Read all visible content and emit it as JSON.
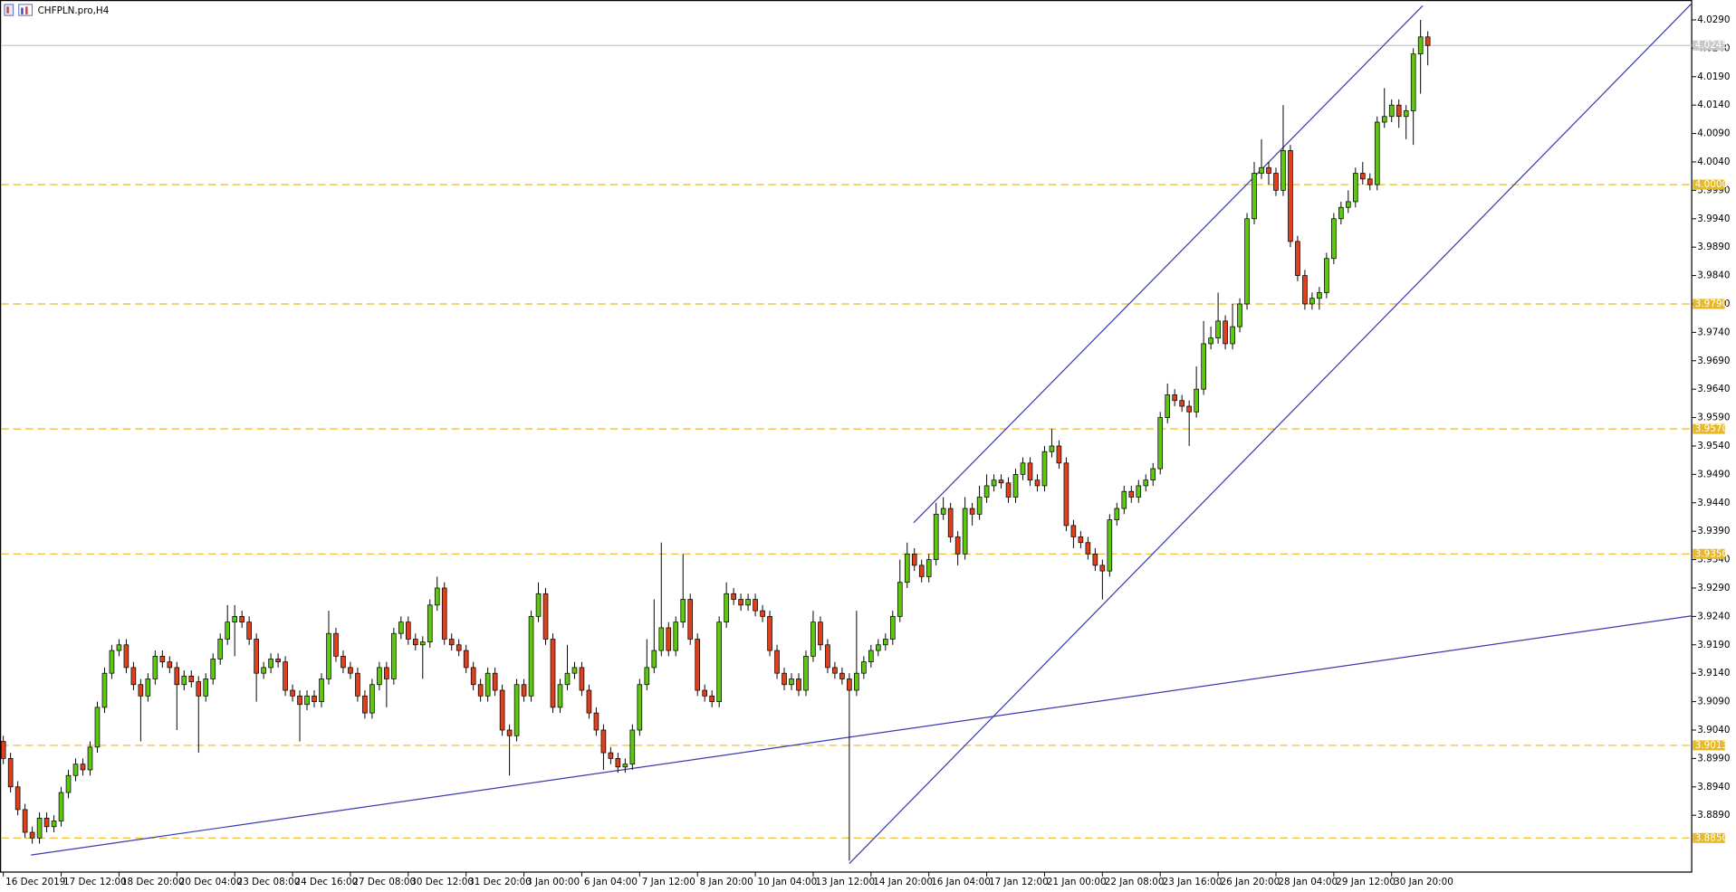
{
  "chart_data": {
    "type": "candlestick",
    "title": "CHFPLN.pro,H4",
    "up_color": "#5ec80f",
    "down_color": "#e0401c",
    "level_color": "#e8b923",
    "trendline_color": "#3a3ab0",
    "xlim": [
      -0.46,
      233.5
    ],
    "ylim": [
      3.879,
      4.0325
    ],
    "xticks": [
      {
        "value": 0,
        "label": "16 Dec 2019"
      },
      {
        "value": 8,
        "label": "17 Dec 12:00"
      },
      {
        "value": 16,
        "label": "18 Dec 20:00"
      },
      {
        "value": 24,
        "label": "20 Dec 04:00"
      },
      {
        "value": 32,
        "label": "23 Dec 08:00"
      },
      {
        "value": 40,
        "label": "24 Dec 16:00"
      },
      {
        "value": 48,
        "label": "27 Dec 08:00"
      },
      {
        "value": 56,
        "label": "30 Dec 12:00"
      },
      {
        "value": 64,
        "label": "31 Dec 20:00"
      },
      {
        "value": 72,
        "label": "3 Jan 00:00"
      },
      {
        "value": 80,
        "label": "6 Jan 04:00"
      },
      {
        "value": 88,
        "label": "7 Jan 12:00"
      },
      {
        "value": 96,
        "label": "8 Jan 20:00"
      },
      {
        "value": 104,
        "label": "10 Jan 04:00"
      },
      {
        "value": 112,
        "label": "13 Jan 12:00"
      },
      {
        "value": 120,
        "label": "14 Jan 20:00"
      },
      {
        "value": 128,
        "label": "16 Jan 04:00"
      },
      {
        "value": 136,
        "label": "17 Jan 12:00"
      },
      {
        "value": 144,
        "label": "21 Jan 00:00"
      },
      {
        "value": 152,
        "label": "22 Jan 08:00"
      },
      {
        "value": 160,
        "label": "23 Jan 16:00"
      },
      {
        "value": 168,
        "label": "26 Jan 20:00"
      },
      {
        "value": 176,
        "label": "28 Jan 04:00"
      },
      {
        "value": 184,
        "label": "29 Jan 12:00"
      },
      {
        "value": 192,
        "label": "30 Jan 20:00"
      }
    ],
    "yticks": [
      {
        "value": 4.029,
        "label": "4.0290"
      },
      {
        "value": 4.024,
        "label": "4.0240"
      },
      {
        "value": 4.019,
        "label": "4.0190"
      },
      {
        "value": 4.014,
        "label": "4.0140"
      },
      {
        "value": 4.009,
        "label": "4.0090"
      },
      {
        "value": 4.004,
        "label": "4.0040"
      },
      {
        "value": 3.999,
        "label": "3.9990"
      },
      {
        "value": 3.994,
        "label": "3.9940"
      },
      {
        "value": 3.989,
        "label": "3.9890"
      },
      {
        "value": 3.984,
        "label": "3.9840"
      },
      {
        "value": 3.979,
        "label": "3.9790"
      },
      {
        "value": 3.974,
        "label": "3.9740"
      },
      {
        "value": 3.969,
        "label": "3.9690"
      },
      {
        "value": 3.964,
        "label": "3.9640"
      },
      {
        "value": 3.959,
        "label": "3.9590"
      },
      {
        "value": 3.954,
        "label": "3.9540"
      },
      {
        "value": 3.949,
        "label": "3.9490"
      },
      {
        "value": 3.944,
        "label": "3.9440"
      },
      {
        "value": 3.939,
        "label": "3.9390"
      },
      {
        "value": 3.934,
        "label": "3.9340"
      },
      {
        "value": 3.929,
        "label": "3.9290"
      },
      {
        "value": 3.924,
        "label": "3.9240"
      },
      {
        "value": 3.919,
        "label": "3.9190"
      },
      {
        "value": 3.914,
        "label": "3.9140"
      },
      {
        "value": 3.909,
        "label": "3.9090"
      },
      {
        "value": 3.904,
        "label": "3.9040"
      },
      {
        "value": 3.899,
        "label": "3.8990"
      },
      {
        "value": 3.894,
        "label": "3.8940"
      },
      {
        "value": 3.889,
        "label": "3.8890"
      }
    ],
    "levels": [
      {
        "value": 4.0,
        "label": "4.0000"
      },
      {
        "value": 3.979,
        "label": "3.9790"
      },
      {
        "value": 3.957,
        "label": "3.9570"
      },
      {
        "value": 3.935,
        "label": "3.9350"
      },
      {
        "value": 3.9013,
        "label": "3.9013"
      },
      {
        "value": 3.885,
        "label": "3.8850"
      }
    ],
    "last_price": {
      "value": 4.0245,
      "label": "4.0245"
    },
    "trendlines": [
      {
        "x": [
          3.83,
          233.5
        ],
        "y": [
          3.882,
          3.9241
        ]
      },
      {
        "x": [
          125.9,
          196.3
        ],
        "y": [
          3.9405,
          4.0315
        ]
      },
      {
        "x": [
          117,
          233.5
        ],
        "y": [
          3.8805,
          4.0319
        ]
      }
    ],
    "open": [
      3.902,
      3.899,
      3.894,
      3.89,
      3.886,
      3.885,
      3.8885,
      3.887,
      3.888,
      3.893,
      3.896,
      3.898,
      3.897,
      3.901,
      3.908,
      3.914,
      3.918,
      3.919,
      3.915,
      3.912,
      3.91,
      3.913,
      3.917,
      3.916,
      3.915,
      3.912,
      3.9135,
      3.9125,
      3.91,
      3.913,
      3.9165,
      3.92,
      3.923,
      3.924,
      3.923,
      3.92,
      3.914,
      3.915,
      3.9165,
      3.916,
      3.911,
      3.91,
      3.9085,
      3.91,
      3.909,
      3.913,
      3.921,
      3.917,
      3.915,
      3.914,
      3.91,
      3.907,
      3.912,
      3.915,
      3.913,
      3.921,
      3.923,
      3.92,
      3.919,
      3.9195,
      3.926,
      3.929,
      3.92,
      3.919,
      3.918,
      3.915,
      3.912,
      3.91,
      3.914,
      3.911,
      3.904,
      3.903,
      3.912,
      3.91,
      3.924,
      3.928,
      3.92,
      3.908,
      3.912,
      3.914,
      3.915,
      3.911,
      3.907,
      3.904,
      3.9,
      3.899,
      3.8975,
      3.898,
      3.904,
      3.912,
      3.915,
      3.918,
      3.922,
      3.918,
      3.923,
      3.927,
      3.92,
      3.911,
      3.91,
      3.909,
      3.923,
      3.928,
      3.927,
      3.926,
      3.927,
      3.925,
      3.924,
      3.918,
      3.914,
      3.912,
      3.913,
      3.911,
      3.917,
      3.923,
      3.919,
      3.915,
      3.914,
      3.913,
      3.911,
      3.914,
      3.916,
      3.918,
      3.919,
      3.92,
      3.924,
      3.93,
      3.935,
      3.933,
      3.931,
      3.934,
      3.942,
      3.943,
      3.938,
      3.935,
      3.943,
      3.942,
      3.945,
      3.947,
      3.948,
      3.9475,
      3.945,
      3.949,
      3.951,
      3.948,
      3.947,
      3.953,
      3.954,
      3.951,
      3.94,
      3.938,
      3.937,
      3.935,
      3.933,
      3.932,
      3.941,
      3.943,
      3.946,
      3.945,
      3.947,
      3.948,
      3.95,
      3.959,
      3.963,
      3.962,
      3.961,
      3.96,
      3.964,
      3.972,
      3.973,
      3.976,
      3.972,
      3.975,
      3.979,
      3.994,
      4.002,
      4.003,
      4.002,
      3.999,
      4.006,
      3.99,
      3.984,
      3.979,
      3.98,
      3.981,
      3.987,
      3.994,
      3.996,
      3.997,
      4.002,
      4.001,
      4.0,
      4.011,
      4.012,
      4.014,
      4.012,
      4.013,
      4.023,
      4.026
    ],
    "high": [
      3.903,
      3.9,
      3.895,
      3.891,
      3.887,
      3.8895,
      3.8895,
      3.889,
      3.894,
      3.897,
      3.899,
      3.899,
      3.902,
      3.909,
      3.915,
      3.919,
      3.92,
      3.92,
      3.916,
      3.913,
      3.914,
      3.918,
      3.918,
      3.917,
      3.916,
      3.9145,
      3.9145,
      3.9135,
      3.914,
      3.9175,
      3.921,
      3.926,
      3.926,
      3.925,
      3.924,
      3.921,
      3.916,
      3.9175,
      3.9175,
      3.917,
      3.912,
      3.911,
      3.911,
      3.911,
      3.914,
      3.925,
      3.922,
      3.918,
      3.916,
      3.915,
      3.911,
      3.913,
      3.916,
      3.916,
      3.922,
      3.924,
      3.924,
      3.921,
      3.9205,
      3.927,
      3.931,
      3.93,
      3.921,
      3.92,
      3.919,
      3.916,
      3.913,
      3.915,
      3.915,
      3.912,
      3.905,
      3.913,
      3.913,
      3.925,
      3.93,
      3.929,
      3.921,
      3.913,
      3.919,
      3.916,
      3.916,
      3.912,
      3.908,
      3.905,
      3.901,
      3.9,
      3.899,
      3.905,
      3.913,
      3.92,
      3.927,
      3.937,
      3.923,
      3.924,
      3.935,
      3.928,
      3.921,
      3.912,
      3.911,
      3.924,
      3.93,
      3.929,
      3.928,
      3.928,
      3.928,
      3.926,
      3.925,
      3.919,
      3.915,
      3.914,
      3.914,
      3.918,
      3.925,
      3.924,
      3.92,
      3.916,
      3.915,
      3.914,
      3.925,
      3.917,
      3.919,
      3.92,
      3.921,
      3.925,
      3.934,
      3.937,
      3.936,
      3.934,
      3.935,
      3.944,
      3.945,
      3.944,
      3.939,
      3.945,
      3.944,
      3.947,
      3.949,
      3.949,
      3.949,
      3.9485,
      3.95,
      3.952,
      3.952,
      3.949,
      3.954,
      3.957,
      3.955,
      3.952,
      3.941,
      3.939,
      3.938,
      3.936,
      3.934,
      3.942,
      3.944,
      3.947,
      3.947,
      3.948,
      3.949,
      3.951,
      3.96,
      3.965,
      3.964,
      3.963,
      3.962,
      3.968,
      3.976,
      3.975,
      3.981,
      3.977,
      3.979,
      3.98,
      3.995,
      4.004,
      4.008,
      4.004,
      4.003,
      4.014,
      4.007,
      3.991,
      3.985,
      3.981,
      3.982,
      3.988,
      3.995,
      3.997,
      3.999,
      4.003,
      4.004,
      4.002,
      4.012,
      4.017,
      4.015,
      4.015,
      4.014,
      4.024,
      4.029,
      4.027
    ],
    "low": [
      3.898,
      3.893,
      3.889,
      3.885,
      3.884,
      3.884,
      3.886,
      3.886,
      3.887,
      3.892,
      3.895,
      3.896,
      3.896,
      3.9,
      3.907,
      3.913,
      3.917,
      3.914,
      3.911,
      3.902,
      3.909,
      3.912,
      3.915,
      3.914,
      3.904,
      3.911,
      3.9115,
      3.9,
      3.909,
      3.912,
      3.9155,
      3.919,
      3.917,
      3.922,
      3.919,
      3.909,
      3.913,
      3.914,
      3.915,
      3.91,
      3.909,
      3.902,
      3.9075,
      3.908,
      3.908,
      3.912,
      3.916,
      3.914,
      3.913,
      3.909,
      3.906,
      3.906,
      3.911,
      3.908,
      3.912,
      3.92,
      3.919,
      3.918,
      3.913,
      3.9185,
      3.925,
      3.919,
      3.918,
      3.917,
      3.914,
      3.911,
      3.909,
      3.909,
      3.91,
      3.903,
      3.896,
      3.902,
      3.909,
      3.909,
      3.923,
      3.919,
      3.907,
      3.907,
      3.911,
      3.913,
      3.91,
      3.906,
      3.903,
      3.897,
      3.898,
      3.8965,
      3.8965,
      3.897,
      3.903,
      3.911,
      3.914,
      3.917,
      3.917,
      3.917,
      3.922,
      3.919,
      3.91,
      3.909,
      3.908,
      3.908,
      3.922,
      3.926,
      3.925,
      3.925,
      3.924,
      3.923,
      3.917,
      3.913,
      3.911,
      3.911,
      3.91,
      3.91,
      3.916,
      3.918,
      3.914,
      3.913,
      3.912,
      3.881,
      3.91,
      3.913,
      3.915,
      3.917,
      3.918,
      3.919,
      3.923,
      3.929,
      3.932,
      3.93,
      3.93,
      3.933,
      3.941,
      3.937,
      3.933,
      3.934,
      3.94,
      3.941,
      3.944,
      3.946,
      3.9465,
      3.944,
      3.944,
      3.948,
      3.947,
      3.946,
      3.946,
      3.952,
      3.95,
      3.939,
      3.936,
      3.936,
      3.934,
      3.932,
      3.927,
      3.931,
      3.94,
      3.942,
      3.944,
      3.944,
      3.946,
      3.947,
      3.949,
      3.958,
      3.961,
      3.96,
      3.954,
      3.959,
      3.963,
      3.971,
      3.972,
      3.971,
      3.971,
      3.974,
      3.978,
      3.993,
      4.001,
      4.0,
      3.998,
      3.998,
      3.989,
      3.983,
      3.978,
      3.978,
      3.978,
      3.98,
      3.986,
      3.993,
      3.995,
      3.996,
      4.0,
      3.999,
      3.999,
      4.01,
      4.011,
      4.01,
      4.008,
      4.007,
      4.016,
      4.021
    ],
    "close": [
      3.899,
      3.894,
      3.89,
      3.886,
      3.885,
      3.8885,
      3.887,
      3.888,
      3.893,
      3.896,
      3.898,
      3.897,
      3.901,
      3.908,
      3.914,
      3.918,
      3.919,
      3.915,
      3.912,
      3.91,
      3.913,
      3.917,
      3.916,
      3.915,
      3.912,
      3.9135,
      3.9125,
      3.91,
      3.913,
      3.9165,
      3.92,
      3.923,
      3.924,
      3.923,
      3.92,
      3.914,
      3.915,
      3.9165,
      3.916,
      3.911,
      3.91,
      3.9085,
      3.91,
      3.909,
      3.913,
      3.921,
      3.917,
      3.915,
      3.914,
      3.91,
      3.907,
      3.912,
      3.915,
      3.913,
      3.921,
      3.923,
      3.92,
      3.919,
      3.9195,
      3.926,
      3.929,
      3.92,
      3.919,
      3.918,
      3.915,
      3.912,
      3.91,
      3.914,
      3.911,
      3.904,
      3.903,
      3.912,
      3.91,
      3.924,
      3.928,
      3.92,
      3.908,
      3.912,
      3.914,
      3.915,
      3.911,
      3.907,
      3.904,
      3.9,
      3.899,
      3.8975,
      3.898,
      3.904,
      3.912,
      3.915,
      3.918,
      3.922,
      3.918,
      3.923,
      3.927,
      3.92,
      3.911,
      3.91,
      3.909,
      3.923,
      3.928,
      3.927,
      3.926,
      3.927,
      3.925,
      3.924,
      3.918,
      3.914,
      3.912,
      3.913,
      3.911,
      3.917,
      3.923,
      3.919,
      3.915,
      3.914,
      3.913,
      3.911,
      3.914,
      3.916,
      3.918,
      3.919,
      3.92,
      3.924,
      3.93,
      3.935,
      3.933,
      3.931,
      3.934,
      3.942,
      3.943,
      3.938,
      3.935,
      3.943,
      3.942,
      3.945,
      3.947,
      3.948,
      3.9475,
      3.945,
      3.949,
      3.951,
      3.948,
      3.947,
      3.953,
      3.954,
      3.951,
      3.94,
      3.938,
      3.937,
      3.935,
      3.933,
      3.932,
      3.941,
      3.943,
      3.946,
      3.945,
      3.947,
      3.948,
      3.95,
      3.959,
      3.963,
      3.962,
      3.961,
      3.96,
      3.964,
      3.972,
      3.973,
      3.976,
      3.972,
      3.975,
      3.979,
      3.994,
      4.002,
      4.003,
      4.002,
      3.999,
      4.006,
      3.99,
      3.984,
      3.979,
      3.98,
      3.981,
      3.987,
      3.994,
      3.996,
      3.997,
      4.002,
      4.001,
      4.0,
      4.011,
      4.012,
      4.014,
      4.012,
      4.013,
      4.023,
      4.026,
      4.0245
    ]
  }
}
